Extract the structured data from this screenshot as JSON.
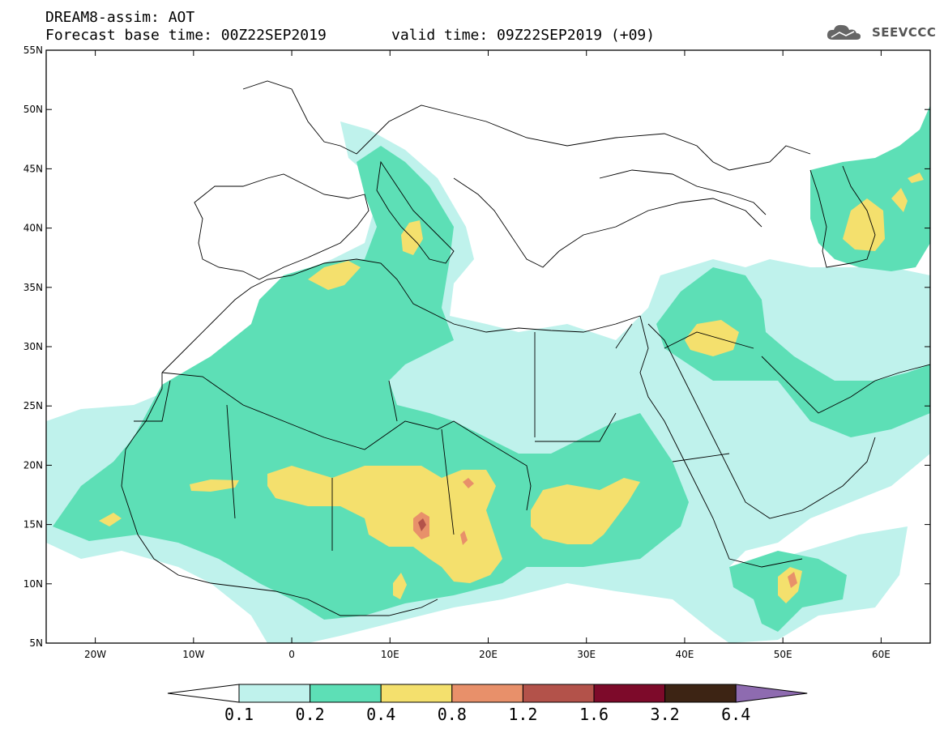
{
  "header": {
    "title_line1": "DREAM8-assim: AOT",
    "title_line2_left": "Forecast base time: 00Z22SEP2019",
    "title_line2_right": "valid time: 09Z22SEP2019 (+09)",
    "logo_text": "SEEVCCC"
  },
  "map": {
    "lon_range": [
      -25,
      65
    ],
    "lat_range": [
      5,
      55
    ],
    "lat_labels": [
      "5N",
      "10N",
      "15N",
      "20N",
      "25N",
      "30N",
      "35N",
      "40N",
      "45N",
      "50N",
      "55N"
    ],
    "lon_labels": [
      "20W",
      "10W",
      "0",
      "10E",
      "20E",
      "30E",
      "40E",
      "50E",
      "60E"
    ]
  },
  "colorbar": {
    "levels": [
      "0.1",
      "0.2",
      "0.4",
      "0.8",
      "1.2",
      "1.6",
      "3.2",
      "6.4"
    ],
    "colors": [
      "#bff2ec",
      "#5ddfb6",
      "#f4e06d",
      "#e8906a",
      "#b3524a",
      "#7d0a2a",
      "#3d2414",
      "#8e6bb0"
    ],
    "under_color": "#ffffff"
  }
}
